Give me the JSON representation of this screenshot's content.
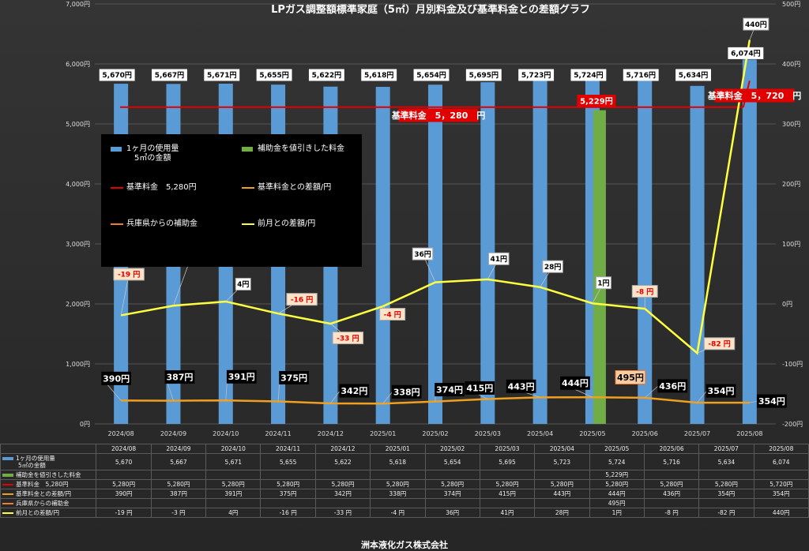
{
  "chart_data": {
    "type": "bar",
    "title": "LPガス調整額標準家庭（5㎥）月別料金及び基準料金との差額グラフ",
    "categories": [
      "2024/08",
      "2024/09",
      "2024/10",
      "2024/11",
      "2024/12",
      "2025/01",
      "2025/02",
      "2025/03",
      "2025/04",
      "2025/05",
      "2025/06",
      "2025/07",
      "2025/08"
    ],
    "left_axis": {
      "ylim": [
        0,
        7000
      ],
      "ticks": [
        "0円",
        "1,000円",
        "2,000円",
        "3,000円",
        "4,000円",
        "5,000円",
        "6,000円",
        "7,000円"
      ]
    },
    "right_axis": {
      "ylim": [
        -200,
        500
      ],
      "ticks": [
        "-200円",
        "-100円",
        "0円",
        "100円",
        "200円",
        "300円",
        "400円",
        "500円"
      ]
    },
    "series": [
      {
        "name": "1ヶ月の使用量\n5㎥の金額",
        "short_name": "1ヶ月の使用量",
        "short_name2": "5㎥の金額",
        "kind": "bar",
        "color": "#5b9bd5",
        "axis": "left",
        "values": [
          5670,
          5667,
          5671,
          5655,
          5622,
          5618,
          5654,
          5695,
          5723,
          5724,
          5716,
          5634,
          6074
        ],
        "labels": [
          "5,670円",
          "5,667円",
          "5,671円",
          "5,655円",
          "5,622円",
          "5,618円",
          "5,654円",
          "5,695円",
          "5,723円",
          "5,724円",
          "5,716円",
          "5,634円",
          "6,074円"
        ]
      },
      {
        "name": "補助金を値引きした料金",
        "kind": "bar",
        "color": "#70ad47",
        "axis": "left",
        "values": [
          null,
          null,
          null,
          null,
          null,
          null,
          null,
          null,
          null,
          5229,
          null,
          null,
          null
        ],
        "labels": [
          "",
          "",
          "",
          "",
          "",
          "",
          "",
          "",
          "",
          "5,229円",
          "",
          "",
          ""
        ]
      },
      {
        "name": "基準料金　5,280円",
        "kind": "line",
        "color": "#e00000",
        "axis": "left",
        "values": [
          5280,
          5280,
          5280,
          5280,
          5280,
          5280,
          5280,
          5280,
          5280,
          5280,
          5280,
          5280,
          5720
        ],
        "labels": [
          "5,280円",
          "5,280円",
          "5,280円",
          "5,280円",
          "5,280円",
          "5,280円",
          "5,280円",
          "5,280円",
          "5,280円",
          "5,280円",
          "5,280円",
          "5,280円",
          "5,720円"
        ]
      },
      {
        "name": "基準料金との差額/円",
        "kind": "line",
        "color": "#f0a020",
        "axis": "left",
        "values": [
          390,
          387,
          391,
          375,
          342,
          338,
          374,
          415,
          443,
          444,
          436,
          354,
          354
        ],
        "labels": [
          "390円",
          "387円",
          "391円",
          "375円",
          "342円",
          "338円",
          "374円",
          "415円",
          "443円",
          "444円",
          "436円",
          "354円",
          "354円"
        ]
      },
      {
        "name": "兵庫県からの補助金",
        "kind": "line",
        "color": "#ed7d31",
        "axis": "left",
        "values": [
          null,
          null,
          null,
          null,
          null,
          null,
          null,
          null,
          null,
          495,
          null,
          null,
          null
        ],
        "labels": [
          "",
          "",
          "",
          "",
          "",
          "",
          "",
          "",
          "",
          "495円",
          "",
          "",
          ""
        ]
      },
      {
        "name": "前月との差額/円",
        "kind": "line",
        "color": "#ffff40",
        "axis": "right",
        "values": [
          -19,
          -3,
          4,
          -16,
          -33,
          -4,
          36,
          41,
          28,
          1,
          -8,
          -82,
          440
        ],
        "labels": [
          "-19 円",
          "-3 円",
          "4円",
          "-16 円",
          "-33 円",
          "-4 円",
          "36円",
          "41円",
          "28円",
          "1円",
          "-8 円",
          "-82 円",
          "440円"
        ],
        "table_labels": [
          "-19 円",
          "-3 円",
          "4円",
          "-16 円",
          "-33 円",
          "-4 円",
          "36円",
          "41円",
          "28円",
          "1円",
          "-8 円",
          "-82 円",
          "440円"
        ]
      }
    ],
    "annotations": {
      "base_fee_1": "基準料金　5，280　円",
      "base_fee_2": "基準料金　5，720　円"
    },
    "footer": "洲本液化ガス株式会社",
    "grid": true,
    "legend_position": "left-center"
  }
}
